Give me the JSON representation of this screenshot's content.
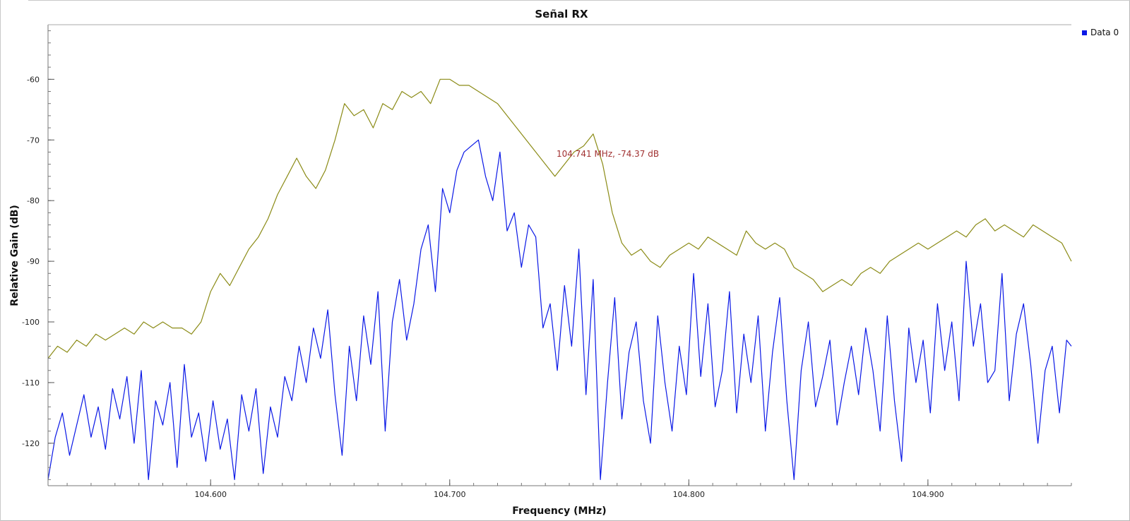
{
  "chart_data": {
    "type": "line",
    "title": "Señal RX",
    "xlabel": "Frequency (MHz)",
    "ylabel": "Relative Gain (dB)",
    "xlim": [
      104.532,
      104.96
    ],
    "ylim": [
      -127,
      -51
    ],
    "x_ticks": [
      104.6,
      104.7,
      104.8,
      104.9
    ],
    "x_tick_labels": [
      "104.600",
      "104.700",
      "104.800",
      "104.900"
    ],
    "y_ticks": [
      -60,
      -70,
      -80,
      -90,
      -100,
      -110,
      -120
    ],
    "y_tick_labels": [
      "-60",
      "-70",
      "-80",
      "-90",
      "-100",
      "-110",
      "-120"
    ],
    "grid": false,
    "legend": {
      "placement": "top-right",
      "entries": [
        "Data 0"
      ]
    },
    "annotation": {
      "text": "104.741 MHz, -74.37 dB",
      "x": 104.741,
      "y": -74.37
    },
    "series": [
      {
        "name": "Data 0",
        "color": "#0a18e6",
        "x": [
          104.532,
          104.535,
          104.538,
          104.541,
          104.544,
          104.547,
          104.55,
          104.553,
          104.556,
          104.559,
          104.562,
          104.565,
          104.568,
          104.571,
          104.574,
          104.577,
          104.58,
          104.583,
          104.586,
          104.589,
          104.592,
          104.595,
          104.598,
          104.601,
          104.604,
          104.607,
          104.61,
          104.613,
          104.616,
          104.619,
          104.622,
          104.625,
          104.628,
          104.631,
          104.634,
          104.637,
          104.64,
          104.643,
          104.646,
          104.649,
          104.652,
          104.655,
          104.658,
          104.661,
          104.664,
          104.667,
          104.67,
          104.673,
          104.676,
          104.679,
          104.682,
          104.685,
          104.688,
          104.691,
          104.694,
          104.697,
          104.7,
          104.703,
          104.706,
          104.709,
          104.712,
          104.715,
          104.718,
          104.721,
          104.724,
          104.727,
          104.73,
          104.733,
          104.736,
          104.739,
          104.742,
          104.745,
          104.748,
          104.751,
          104.754,
          104.757,
          104.76,
          104.763,
          104.766,
          104.769,
          104.772,
          104.775,
          104.778,
          104.781,
          104.784,
          104.787,
          104.79,
          104.793,
          104.796,
          104.799,
          104.802,
          104.805,
          104.808,
          104.811,
          104.814,
          104.817,
          104.82,
          104.823,
          104.826,
          104.829,
          104.832,
          104.835,
          104.838,
          104.841,
          104.844,
          104.847,
          104.85,
          104.853,
          104.856,
          104.859,
          104.862,
          104.865,
          104.868,
          104.871,
          104.874,
          104.877,
          104.88,
          104.883,
          104.886,
          104.889,
          104.892,
          104.895,
          104.898,
          104.901,
          104.904,
          104.907,
          104.91,
          104.913,
          104.916,
          104.919,
          104.922,
          104.925,
          104.928,
          104.931,
          104.934,
          104.937,
          104.94,
          104.943,
          104.946,
          104.949,
          104.952,
          104.955,
          104.958,
          104.96
        ],
        "values": [
          -126,
          -119,
          -115,
          -122,
          -117,
          -112,
          -119,
          -114,
          -121,
          -111,
          -116,
          -109,
          -120,
          -108,
          -126,
          -113,
          -117,
          -110,
          -124,
          -107,
          -119,
          -115,
          -123,
          -113,
          -121,
          -116,
          -126,
          -112,
          -118,
          -111,
          -125,
          -114,
          -119,
          -109,
          -113,
          -104,
          -110,
          -101,
          -106,
          -98,
          -112,
          -122,
          -104,
          -113,
          -99,
          -107,
          -95,
          -118,
          -100,
          -93,
          -103,
          -97,
          -88,
          -84,
          -95,
          -78,
          -82,
          -75,
          -72,
          -71,
          -70,
          -76,
          -80,
          -72,
          -85,
          -82,
          -91,
          -84,
          -86,
          -101,
          -97,
          -108,
          -94,
          -104,
          -88,
          -112,
          -93,
          -126,
          -110,
          -96,
          -116,
          -105,
          -100,
          -113,
          -120,
          -99,
          -110,
          -118,
          -104,
          -112,
          -92,
          -109,
          -97,
          -114,
          -108,
          -95,
          -115,
          -102,
          -110,
          -99,
          -118,
          -105,
          -96,
          -113,
          -126,
          -108,
          -100,
          -114,
          -109,
          -103,
          -117,
          -110,
          -104,
          -112,
          -101,
          -108,
          -118,
          -99,
          -113,
          -123,
          -101,
          -110,
          -103,
          -115,
          -97,
          -108,
          -100,
          -113,
          -90,
          -104,
          -97,
          -110,
          -108,
          -92,
          -113,
          -102,
          -97,
          -107,
          -120,
          -108,
          -104,
          -115,
          -103,
          -104
        ]
      },
      {
        "name": "",
        "color": "#8b8b16",
        "x": [
          104.532,
          104.536,
          104.54,
          104.544,
          104.548,
          104.552,
          104.556,
          104.56,
          104.564,
          104.568,
          104.572,
          104.576,
          104.58,
          104.584,
          104.588,
          104.592,
          104.596,
          104.6,
          104.604,
          104.608,
          104.612,
          104.616,
          104.62,
          104.624,
          104.628,
          104.632,
          104.636,
          104.64,
          104.644,
          104.648,
          104.652,
          104.656,
          104.66,
          104.664,
          104.668,
          104.672,
          104.676,
          104.68,
          104.684,
          104.688,
          104.692,
          104.696,
          104.7,
          104.704,
          104.708,
          104.712,
          104.716,
          104.72,
          104.724,
          104.728,
          104.732,
          104.736,
          104.74,
          104.744,
          104.748,
          104.752,
          104.756,
          104.76,
          104.764,
          104.768,
          104.772,
          104.776,
          104.78,
          104.784,
          104.788,
          104.792,
          104.796,
          104.8,
          104.804,
          104.808,
          104.812,
          104.816,
          104.82,
          104.824,
          104.828,
          104.832,
          104.836,
          104.84,
          104.844,
          104.848,
          104.852,
          104.856,
          104.86,
          104.864,
          104.868,
          104.872,
          104.876,
          104.88,
          104.884,
          104.888,
          104.892,
          104.896,
          104.9,
          104.904,
          104.908,
          104.912,
          104.916,
          104.92,
          104.924,
          104.928,
          104.932,
          104.936,
          104.94,
          104.944,
          104.948,
          104.952,
          104.956,
          104.96
        ],
        "values": [
          -106,
          -104,
          -105,
          -103,
          -104,
          -102,
          -103,
          -102,
          -101,
          -102,
          -100,
          -101,
          -100,
          -101,
          -101,
          -102,
          -100,
          -95,
          -92,
          -94,
          -91,
          -88,
          -86,
          -83,
          -79,
          -76,
          -73,
          -76,
          -78,
          -75,
          -70,
          -64,
          -66,
          -65,
          -68,
          -64,
          -65,
          -62,
          -63,
          -62,
          -64,
          -60,
          -60,
          -61,
          -61,
          -62,
          -63,
          -64,
          -66,
          -68,
          -70,
          -72,
          -74,
          -76,
          -74,
          -72,
          -71,
          -69,
          -74,
          -82,
          -87,
          -89,
          -88,
          -90,
          -91,
          -89,
          -88,
          -87,
          -88,
          -86,
          -87,
          -88,
          -89,
          -85,
          -87,
          -88,
          -87,
          -88,
          -91,
          -92,
          -93,
          -95,
          -94,
          -93,
          -94,
          -92,
          -91,
          -92,
          -90,
          -89,
          -88,
          -87,
          -88,
          -87,
          -86,
          -85,
          -86,
          -84,
          -83,
          -85,
          -84,
          -85,
          -86,
          -84,
          -85,
          -86,
          -87,
          -90
        ]
      }
    ]
  }
}
